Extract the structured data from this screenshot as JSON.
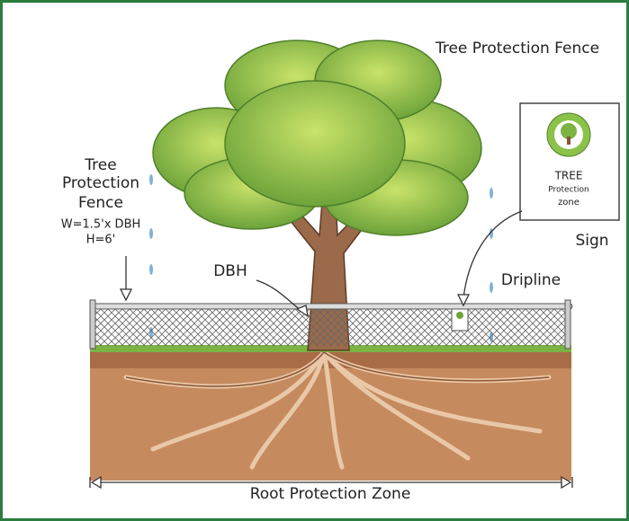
{
  "title": "Tree Protection Fence",
  "fence_label": {
    "lines": [
      "Tree",
      "Protection",
      "Fence"
    ],
    "width": "W=1.5'x DBH",
    "height": "H=6'"
  },
  "dbh_label": "DBH",
  "dripline_label": "Dripline",
  "sign": {
    "lines": [
      "TREE",
      "Protection",
      "zone"
    ],
    "label": "Sign"
  },
  "root_zone_label": "Root Protection Zone"
}
